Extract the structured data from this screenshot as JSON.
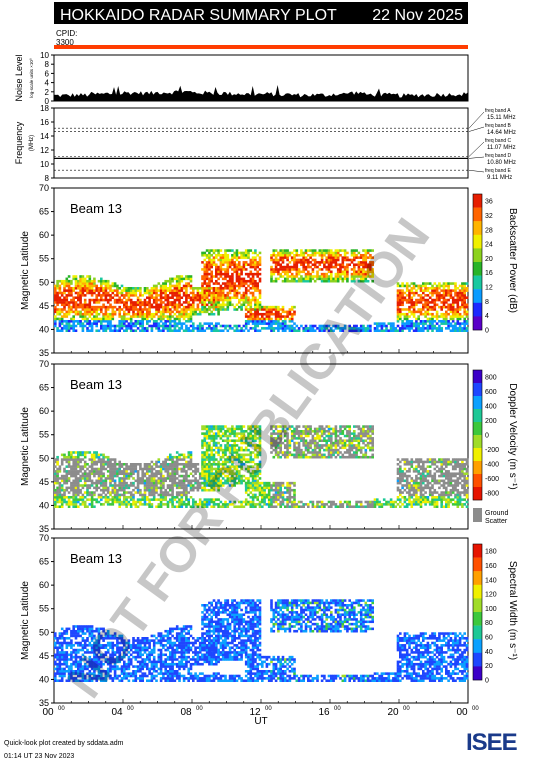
{
  "header": {
    "title": "HOKKAIDO RADAR SUMMARY PLOT",
    "date": "22 Nov 2025",
    "cpid_label": "CPID:",
    "cpid_value": "3300"
  },
  "watermark": "NOT FOR PUBLICATION",
  "footer": {
    "credit_line1": "Quick-look plot created by sddata.adm",
    "credit_line2": "01:14 UT 23 Nov 2023",
    "logo_text": "ISEE"
  },
  "chart_data": [
    {
      "type": "area",
      "id": "noise",
      "ylabel": "Noise Level",
      "ylabel_sub": "log-scale units ×10⁰",
      "ylim": [
        0,
        10
      ],
      "yticks": [
        "0",
        "2",
        "4",
        "6",
        "8",
        "10"
      ],
      "xlim": [
        0,
        24
      ],
      "values": [
        1.2,
        1.3,
        1.5,
        1.6,
        1.8,
        1.7,
        1.9,
        2.0,
        1.8,
        1.7,
        1.6,
        1.5,
        1.5,
        1.4,
        1.3,
        1.3,
        1.5,
        1.8,
        1.4,
        1.3,
        1.2,
        1.3,
        1.4,
        1.5,
        1.6
      ]
    },
    {
      "type": "line",
      "id": "frequency",
      "ylabel": "Frequency",
      "ylabel_sub": "(MHz)",
      "ylim": [
        8,
        18
      ],
      "yticks": [
        "8",
        "10",
        "12",
        "14",
        "16",
        "18"
      ],
      "bands": [
        {
          "name": "freq band A",
          "value": "15.11 MHz",
          "mhz": 15.11
        },
        {
          "name": "freq band B",
          "value": "14.64 MHz",
          "mhz": 14.64
        },
        {
          "name": "freq band C",
          "value": "11.07 MHz",
          "mhz": 11.07
        },
        {
          "name": "freq band D",
          "value": "10.80 MHz",
          "mhz": 10.8
        },
        {
          "name": "freq band E",
          "value": "9.11 MHz",
          "mhz": 9.11
        }
      ],
      "active_mhz": 10.8
    },
    {
      "type": "heatmap",
      "id": "power",
      "beam_label": "Beam 13",
      "ylabel": "Magnetic Latitude",
      "ylim": [
        35,
        70
      ],
      "yticks": [
        "35",
        "40",
        "45",
        "50",
        "55",
        "60",
        "65",
        "70"
      ],
      "colorbar_label": "Backscatter Power (dB)",
      "colorbar_ticks": [
        "0",
        "4",
        "8",
        "12",
        "16",
        "20",
        "24",
        "28",
        "32",
        "36"
      ],
      "colorbar_colors": [
        "#5a00c8",
        "#1e28ff",
        "#0a9bff",
        "#19c8a0",
        "#28b428",
        "#8cd21e",
        "#f0f000",
        "#ffb400",
        "#ff6400",
        "#e61e00"
      ]
    },
    {
      "type": "heatmap",
      "id": "velocity",
      "beam_label": "Beam 13",
      "ylabel": "Magnetic Latitude",
      "ylim": [
        35,
        70
      ],
      "yticks": [
        "35",
        "40",
        "45",
        "50",
        "55",
        "60",
        "65",
        "70"
      ],
      "colorbar_label": "Doppler Velocity (m s⁻¹)",
      "colorbar_ticks": [
        "800",
        "600",
        "400",
        "200",
        "0",
        "-200",
        "-400",
        "-600",
        "-800"
      ],
      "colorbar_colors": [
        "#3c00c8",
        "#1e46ff",
        "#0aa0ff",
        "#1ec896",
        "#3cc83c",
        "#a0dc28",
        "#f0f000",
        "#ffa000",
        "#ff5000",
        "#e61400"
      ],
      "ground_scatter_label": "Ground\nScatter",
      "ground_scatter_color": "#8c8c8c"
    },
    {
      "type": "heatmap",
      "id": "width",
      "beam_label": "Beam 13",
      "ylabel": "Magnetic Latitude",
      "ylim": [
        35,
        70
      ],
      "yticks": [
        "35",
        "40",
        "45",
        "50",
        "55",
        "60",
        "65",
        "70"
      ],
      "colorbar_label": "Spectral Width (m s⁻¹)",
      "colorbar_ticks": [
        "0",
        "20",
        "40",
        "60",
        "80",
        "100",
        "120",
        "140",
        "160",
        "180"
      ],
      "colorbar_colors": [
        "#3c00c8",
        "#1e46ff",
        "#0aa0ff",
        "#1ec896",
        "#3cc83c",
        "#a0dc28",
        "#f0f000",
        "#ffa000",
        "#ff5000",
        "#e61400"
      ]
    }
  ],
  "xaxis": {
    "label": "UT",
    "ticks": [
      {
        "h": "00",
        "m": "00"
      },
      {
        "h": "04",
        "m": "00"
      },
      {
        "h": "08",
        "m": "00"
      },
      {
        "h": "12",
        "m": "00"
      },
      {
        "h": "16",
        "m": "00"
      },
      {
        "h": "20",
        "m": "00"
      },
      {
        "h": "00",
        "m": "00"
      }
    ],
    "xlim_hours": [
      0,
      24
    ]
  }
}
